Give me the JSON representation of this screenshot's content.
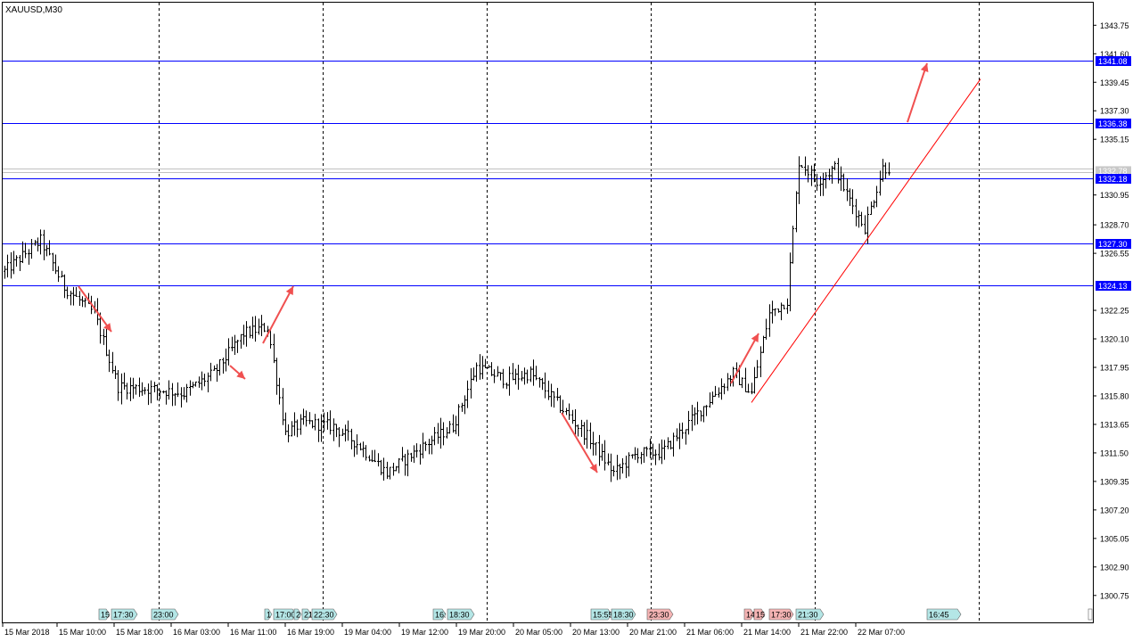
{
  "window": {
    "symbol_timeframe": "XAUUSD,M30"
  },
  "colors": {
    "background": "#ffffff",
    "candle": "#000000",
    "level_line": "#0000ff",
    "level_label_bg": "#0000ff",
    "level_label_text": "#ffffff",
    "trend_line": "#ff0000",
    "arrow": "#f05050",
    "grid_vertical": "#000000",
    "bid_line": "#c0c0c0",
    "event_green_bg": "#b4e6e6",
    "event_red_bg": "#f5b4b4"
  },
  "price_axis": {
    "ticks": [
      "1343.75",
      "1341.60",
      "1339.45",
      "1337.30",
      "1335.15",
      "1330.95",
      "1328.70",
      "1326.55",
      "1322.25",
      "1320.10",
      "1317.95",
      "1315.80",
      "1313.65",
      "1311.50",
      "1309.35",
      "1307.20",
      "1305.05",
      "1302.90",
      "1300.75"
    ],
    "ylim": [
      1299.6,
      1345.0
    ],
    "bid_labels": [
      "1332.78"
    ]
  },
  "time_axis": {
    "labels": [
      "15 Mar 2018",
      "15 Mar 10:00",
      "15 Mar 18:00",
      "16 Mar 03:00",
      "16 Mar 11:00",
      "16 Mar 19:00",
      "19 Mar 04:00",
      "19 Mar 12:00",
      "19 Mar 20:00",
      "20 Mar 05:00",
      "20 Mar 13:00",
      "20 Mar 21:00",
      "21 Mar 06:00",
      "21 Mar 14:00",
      "21 Mar 22:00",
      "22 Mar 07:00"
    ]
  },
  "events": [
    {
      "text": "15",
      "kind": "green"
    },
    {
      "text": "17:30",
      "kind": "green"
    },
    {
      "text": "23:00",
      "kind": "green"
    },
    {
      "text": "1",
      "kind": "green"
    },
    {
      "text": "17:00",
      "kind": "green"
    },
    {
      "text": "2",
      "kind": "green"
    },
    {
      "text": "21",
      "kind": "green"
    },
    {
      "text": "22:30",
      "kind": "green"
    },
    {
      "text": "16:",
      "kind": "green"
    },
    {
      "text": "18:30",
      "kind": "green"
    },
    {
      "text": "15:55",
      "kind": "green"
    },
    {
      "text": "18:30",
      "kind": "green"
    },
    {
      "text": "23:30",
      "kind": "red"
    },
    {
      "text": "14",
      "kind": "red"
    },
    {
      "text": "15",
      "kind": "red"
    },
    {
      "text": "17:30",
      "kind": "red"
    },
    {
      "text": "21:30",
      "kind": "green"
    },
    {
      "text": "16:45",
      "kind": "green"
    }
  ],
  "chart_data": {
    "type": "candlestick",
    "title": "XAUUSD,M30",
    "ylim": [
      1299.6,
      1345.0
    ],
    "grid": "vertical-dashed",
    "horizontal_levels": [
      1341.08,
      1336.38,
      1332.18,
      1327.3,
      1324.13
    ],
    "level_labels": [
      "1341.08",
      "1336.38",
      "1332.18",
      "1327.30",
      "1324.13"
    ],
    "bid_price": 1332.78,
    "trendline": {
      "from": [
        0,
        1315.3
      ],
      "to": [
        1,
        1339.7
      ]
    },
    "anchor_points": [
      [
        0,
        1325.2
      ],
      [
        12,
        1327.5
      ],
      [
        20,
        1324.0
      ],
      [
        30,
        1322.0
      ],
      [
        38,
        1316.5
      ],
      [
        50,
        1316.3
      ],
      [
        60,
        1316.0
      ],
      [
        70,
        1317.5
      ],
      [
        80,
        1320.5
      ],
      [
        88,
        1321.0
      ],
      [
        94,
        1313.0
      ],
      [
        100,
        1313.8
      ],
      [
        110,
        1313.5
      ],
      [
        118,
        1312.2
      ],
      [
        128,
        1310.0
      ],
      [
        140,
        1312.0
      ],
      [
        150,
        1313.5
      ],
      [
        158,
        1318.0
      ],
      [
        168,
        1317.0
      ],
      [
        176,
        1317.5
      ],
      [
        186,
        1315.0
      ],
      [
        196,
        1312.5
      ],
      [
        204,
        1310.0
      ],
      [
        212,
        1311.5
      ],
      [
        220,
        1311.5
      ],
      [
        228,
        1313.5
      ],
      [
        236,
        1315.5
      ],
      [
        244,
        1317.5
      ],
      [
        250,
        1316.0
      ],
      [
        256,
        1322.0
      ],
      [
        262,
        1323.0
      ],
      [
        266,
        1333.5
      ],
      [
        272,
        1332.0
      ],
      [
        278,
        1333.0
      ],
      [
        282,
        1331.0
      ],
      [
        288,
        1328.5
      ],
      [
        294,
        1333.0
      ]
    ]
  }
}
